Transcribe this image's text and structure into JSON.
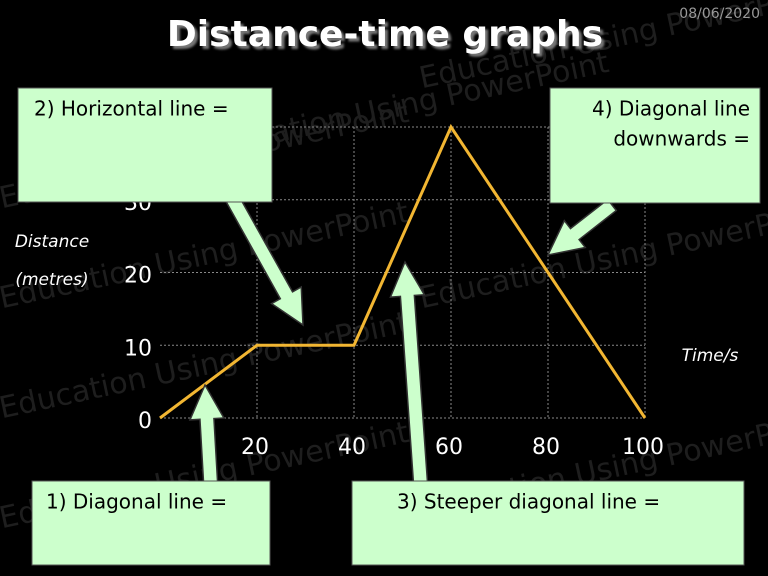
{
  "date": "08/06/2020",
  "watermark": "Education Using PowerPoint",
  "chart_data": {
    "type": "line",
    "title": "Distance-time graphs",
    "x": [
      0,
      20,
      40,
      60,
      80,
      100
    ],
    "series": [
      {
        "color": "#f2b632",
        "values": [
          0,
          10,
          10,
          40,
          20,
          0
        ]
      }
    ],
    "xlim": [
      0,
      100
    ],
    "xticks": [
      20,
      40,
      60,
      80,
      100
    ],
    "ylim": [
      0,
      40
    ],
    "yticks": [
      0,
      10,
      20,
      30
    ],
    "x_label": "Time/s",
    "y_label_lines": [
      "Distance",
      "(metres)"
    ],
    "grid": true
  },
  "callouts": [
    {
      "lines": [
        "2) Horizontal line ="
      ]
    },
    {
      "lines": [
        "4) Diagonal line",
        "downwards ="
      ]
    },
    {
      "lines": [
        "1)  Diagonal line ="
      ]
    },
    {
      "lines": [
        "3) Steeper diagonal line ="
      ]
    }
  ]
}
